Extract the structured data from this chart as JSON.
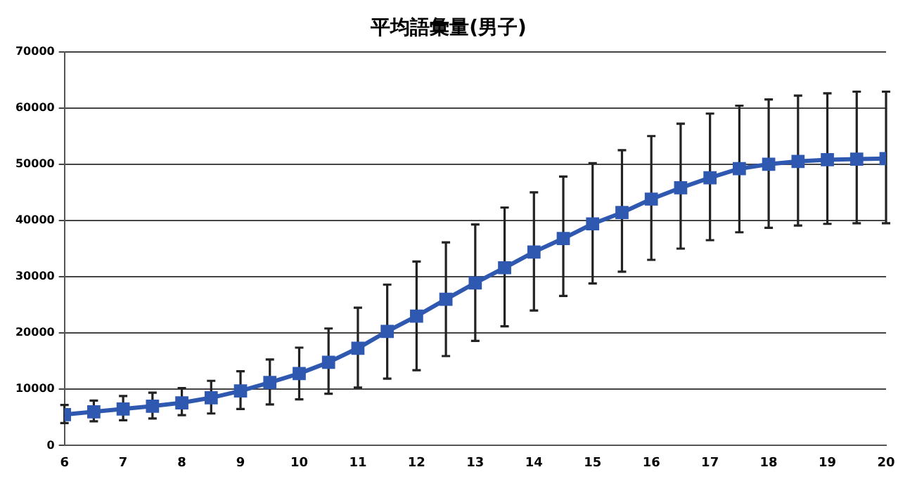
{
  "chart_data": {
    "type": "line",
    "title": "平均語彙量(男子)",
    "x": [
      6,
      6.5,
      7,
      7.5,
      8,
      8.5,
      9,
      9.5,
      10,
      10.5,
      11,
      11.5,
      12,
      12.5,
      13,
      13.5,
      14,
      14.5,
      15,
      15.5,
      16,
      16.5,
      17,
      17.5,
      18,
      18.5,
      19,
      19.5,
      20
    ],
    "series": [
      {
        "color": "#2f59b0",
        "values": [
          5500,
          6000,
          6500,
          7000,
          7600,
          8500,
          9700,
          11200,
          12800,
          14800,
          17300,
          20300,
          23000,
          26000,
          28900,
          31600,
          34400,
          36800,
          39400,
          41400,
          43800,
          45800,
          47600,
          49200,
          50000,
          50500,
          50800,
          50900,
          51000
        ],
        "errors": [
          [
            4000,
            7200
          ],
          [
            4300,
            8000
          ],
          [
            4500,
            8800
          ],
          [
            4800,
            9400
          ],
          [
            5400,
            10200
          ],
          [
            5700,
            11500
          ],
          [
            6500,
            13200
          ],
          [
            7300,
            15300
          ],
          [
            8200,
            17400
          ],
          [
            9200,
            20800
          ],
          [
            10300,
            24500
          ],
          [
            11900,
            28600
          ],
          [
            13400,
            32700
          ],
          [
            15900,
            36100
          ],
          [
            18600,
            39300
          ],
          [
            21200,
            42300
          ],
          [
            24000,
            45000
          ],
          [
            26600,
            47800
          ],
          [
            28800,
            50200
          ],
          [
            30900,
            52500
          ],
          [
            33000,
            55000
          ],
          [
            35000,
            57200
          ],
          [
            36500,
            59000
          ],
          [
            37900,
            60400
          ],
          [
            38700,
            61500
          ],
          [
            39100,
            62200
          ],
          [
            39400,
            62600
          ],
          [
            39500,
            62900
          ],
          [
            39500,
            62900
          ]
        ]
      }
    ],
    "xlim": [
      6,
      20
    ],
    "xticks": [
      6,
      7,
      8,
      9,
      10,
      11,
      12,
      13,
      14,
      15,
      16,
      17,
      18,
      19,
      20
    ],
    "ylim": [
      0,
      70000
    ],
    "yticks": [
      0,
      10000,
      20000,
      30000,
      40000,
      50000,
      60000,
      70000
    ],
    "grid": "y",
    "legend": false,
    "marker": "square",
    "line_style": "solid"
  }
}
